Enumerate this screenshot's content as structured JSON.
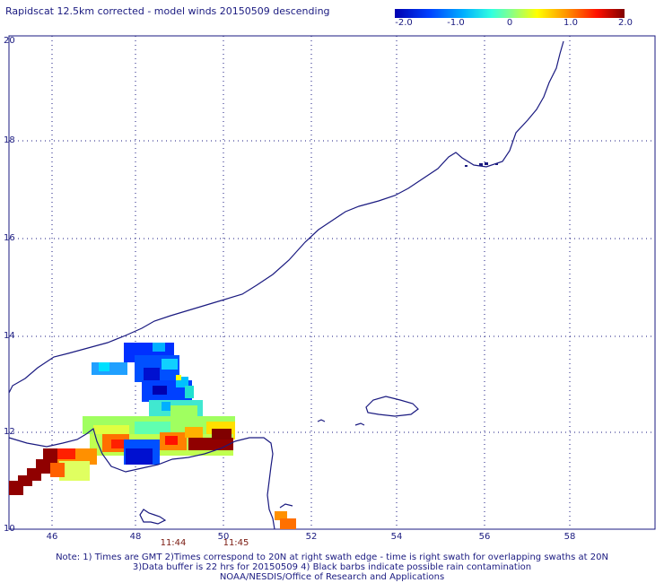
{
  "title": "Rapidscat 12.5km corrected - model winds 20150509 descending",
  "colorbar": {
    "labels": [
      "-2.0",
      "-1.0",
      "0",
      "1.0",
      "2.0"
    ],
    "values": [
      -2.0,
      -1.0,
      0,
      1.0,
      2.0
    ],
    "range": [
      -2.0,
      2.0
    ]
  },
  "map": {
    "lat_range": [
      10,
      20
    ],
    "lon_range": [
      45,
      59.5
    ],
    "lat_ticks": [
      "20",
      "18",
      "16",
      "14",
      "12",
      "10"
    ],
    "lon_ticks": [
      "46",
      "48",
      "50",
      "52",
      "54",
      "56",
      "58"
    ],
    "grid": true
  },
  "times": [
    "11:44",
    "11:45"
  ],
  "notes": [
    "Note: 1) Times are GMT 2)Times correspond to 20N at right swath edge - time is right swath for overlapping swaths at 20N",
    "3)Data buffer is 22 hrs for 20150509 4) Black barbs indicate possible rain contamination",
    "NOAA/NESDIS/Office of Research and Applications"
  ],
  "colors": {
    "text": "#1a1a80",
    "coast": "#1a1a80",
    "time": "#7a1a10"
  }
}
